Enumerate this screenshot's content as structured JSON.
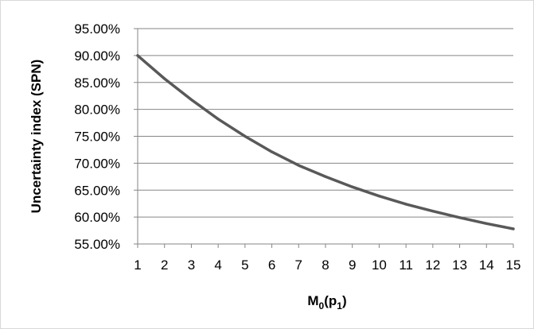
{
  "chart_data": {
    "type": "line",
    "title": "",
    "xlabel": {
      "main": "M",
      "sub1": "0",
      "mid": "(p",
      "sub2": "1",
      "end": ")"
    },
    "ylabel": "Uncertainty index (SPN)",
    "categories": [
      "1",
      "2",
      "3",
      "4",
      "5",
      "6",
      "7",
      "8",
      "9",
      "10",
      "11",
      "12",
      "13",
      "14",
      "15"
    ],
    "series": [
      {
        "values": [
          90.0,
          85.7,
          81.8,
          78.2,
          75.0,
          72.1,
          69.6,
          67.5,
          65.6,
          63.9,
          62.4,
          61.1,
          59.9,
          58.8,
          57.8
        ]
      }
    ],
    "yticks": [
      "55.00%",
      "60.00%",
      "65.00%",
      "70.00%",
      "75.00%",
      "80.00%",
      "85.00%",
      "90.00%",
      "95.00%"
    ],
    "ylim": [
      55,
      95
    ],
    "y_unit": "%",
    "grid": true,
    "line_color": "#595959",
    "grid_color": "#868686"
  }
}
